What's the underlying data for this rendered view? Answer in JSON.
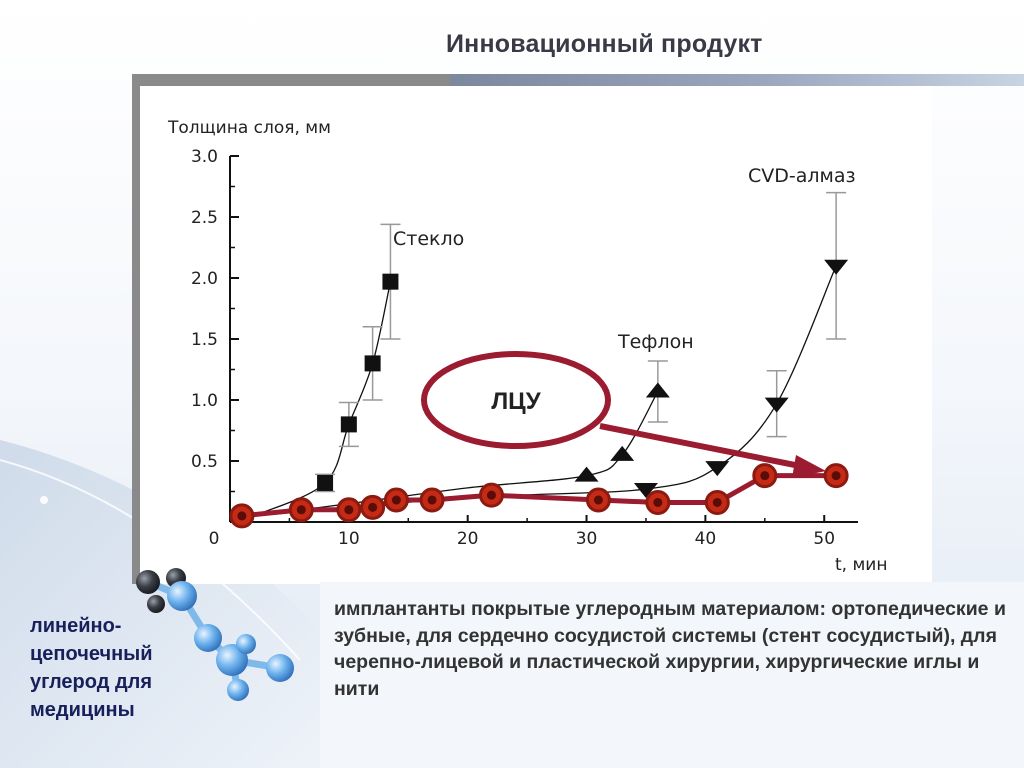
{
  "slide": {
    "title": "Инновационный продукт",
    "left_caption": "линейно-цепочечный углерод для медицины",
    "panel_text": "имплантанты покрытые углеродным материалом: ортопедические и зубные,  для сердечно сосудистой системы (стент сосудистый),  для черепно-лицевой и пластической хирургии, хирургические иглы и нити",
    "colors": {
      "title_bar": "#8a96ab",
      "highlight": "#9b1b30",
      "marker_fill": "#c42a16",
      "marker_ring": "#8b1a10",
      "caption": "#17205a"
    },
    "icons": [
      "molecule-icon"
    ]
  },
  "chart_data": {
    "type": "line",
    "ylabel": "Толщина слоя, мм",
    "xlabel": "t, мин",
    "xlim": [
      0,
      52
    ],
    "ylim": [
      0,
      3.0
    ],
    "x_ticks": [
      "0",
      "10",
      "20",
      "30",
      "40",
      "50"
    ],
    "y_ticks": [
      "0.5",
      "1.0",
      "1.5",
      "2.0",
      "2.5",
      "3.0"
    ],
    "annotation": "ЛЦУ",
    "series": [
      {
        "name": "Стекло",
        "marker": "square",
        "points": [
          [
            2,
            0.05
          ],
          [
            8,
            0.32
          ],
          [
            10,
            0.8
          ],
          [
            12,
            1.3
          ],
          [
            13.5,
            1.97
          ]
        ],
        "errors": [
          [
            8,
            0.07
          ],
          [
            10,
            0.18
          ],
          [
            12,
            0.3
          ],
          [
            13.5,
            0.47
          ]
        ]
      },
      {
        "name": "Тефлон",
        "marker": "triangle-up",
        "points": [
          [
            2,
            0.05
          ],
          [
            10,
            0.15
          ],
          [
            20,
            0.28
          ],
          [
            30,
            0.38
          ],
          [
            33,
            0.55
          ],
          [
            36,
            1.07
          ]
        ],
        "errors": [
          [
            36,
            0.25
          ]
        ]
      },
      {
        "name": "CVD-алмаз",
        "marker": "triangle-down",
        "points": [
          [
            2,
            0.05
          ],
          [
            20,
            0.2
          ],
          [
            35,
            0.27
          ],
          [
            41,
            0.45
          ],
          [
            46,
            0.97
          ],
          [
            51,
            2.1
          ]
        ],
        "errors": [
          [
            46,
            0.27
          ],
          [
            51,
            0.6
          ]
        ]
      },
      {
        "name": "ЛЦУ",
        "marker": "circle",
        "points": [
          [
            1,
            0.05
          ],
          [
            6,
            0.1
          ],
          [
            10,
            0.1
          ],
          [
            12,
            0.12
          ],
          [
            14,
            0.18
          ],
          [
            17,
            0.18
          ],
          [
            22,
            0.22
          ],
          [
            31,
            0.18
          ],
          [
            36,
            0.16
          ],
          [
            41,
            0.16
          ],
          [
            45,
            0.38
          ],
          [
            51,
            0.38
          ]
        ]
      }
    ]
  }
}
